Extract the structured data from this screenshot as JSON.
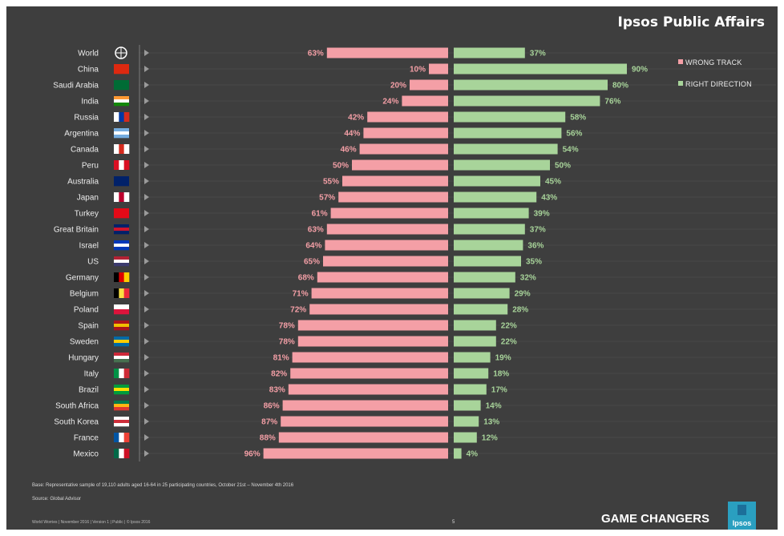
{
  "header": {
    "brand": "Ipsos Public Affairs"
  },
  "legend": {
    "wrong_label": "WRONG TRACK",
    "right_label": "RIGHT DIRECTION",
    "wrong_color": "#f49fa6",
    "right_color": "#a8d49a"
  },
  "chart_data": {
    "type": "bar",
    "orientation": "horizontal-diverging",
    "categories": [
      "World",
      "China",
      "Saudi Arabia",
      "India",
      "Russia",
      "Argentina",
      "Canada",
      "Peru",
      "Australia",
      "Japan",
      "Turkey",
      "Great Britain",
      "Israel",
      "US",
      "Germany",
      "Belgium",
      "Poland",
      "Spain",
      "Sweden",
      "Hungary",
      "Italy",
      "Brazil",
      "South Africa",
      "South Korea",
      "France",
      "Mexico"
    ],
    "series": [
      {
        "name": "WRONG TRACK",
        "color": "#f49fa6",
        "values": [
          63,
          10,
          20,
          24,
          42,
          44,
          46,
          50,
          55,
          57,
          61,
          63,
          64,
          65,
          68,
          71,
          72,
          78,
          78,
          81,
          82,
          83,
          86,
          87,
          88,
          96
        ]
      },
      {
        "name": "RIGHT DIRECTION",
        "color": "#a8d49a",
        "values": [
          37,
          90,
          80,
          76,
          58,
          56,
          54,
          50,
          45,
          43,
          39,
          37,
          36,
          35,
          32,
          29,
          28,
          22,
          22,
          19,
          18,
          17,
          14,
          13,
          12,
          4
        ]
      }
    ],
    "value_suffix": "%",
    "legend_position": "top-right"
  },
  "icons": [
    "globe-icon",
    "flag-icon",
    "play-arrow-icon"
  ],
  "notes": {
    "base": "Base: Representative sample of 19,110 adults aged 16-64 in 25 participating countries, October 21st – November 4th 2016",
    "source": "Source: Global Advisor"
  },
  "footer": {
    "text": "World Worries | November 2016 | Version 1 | Public | © Ipsos 2016",
    "page": "5",
    "tagline": "GAME CHANGERS",
    "logo": "Ipsos"
  }
}
